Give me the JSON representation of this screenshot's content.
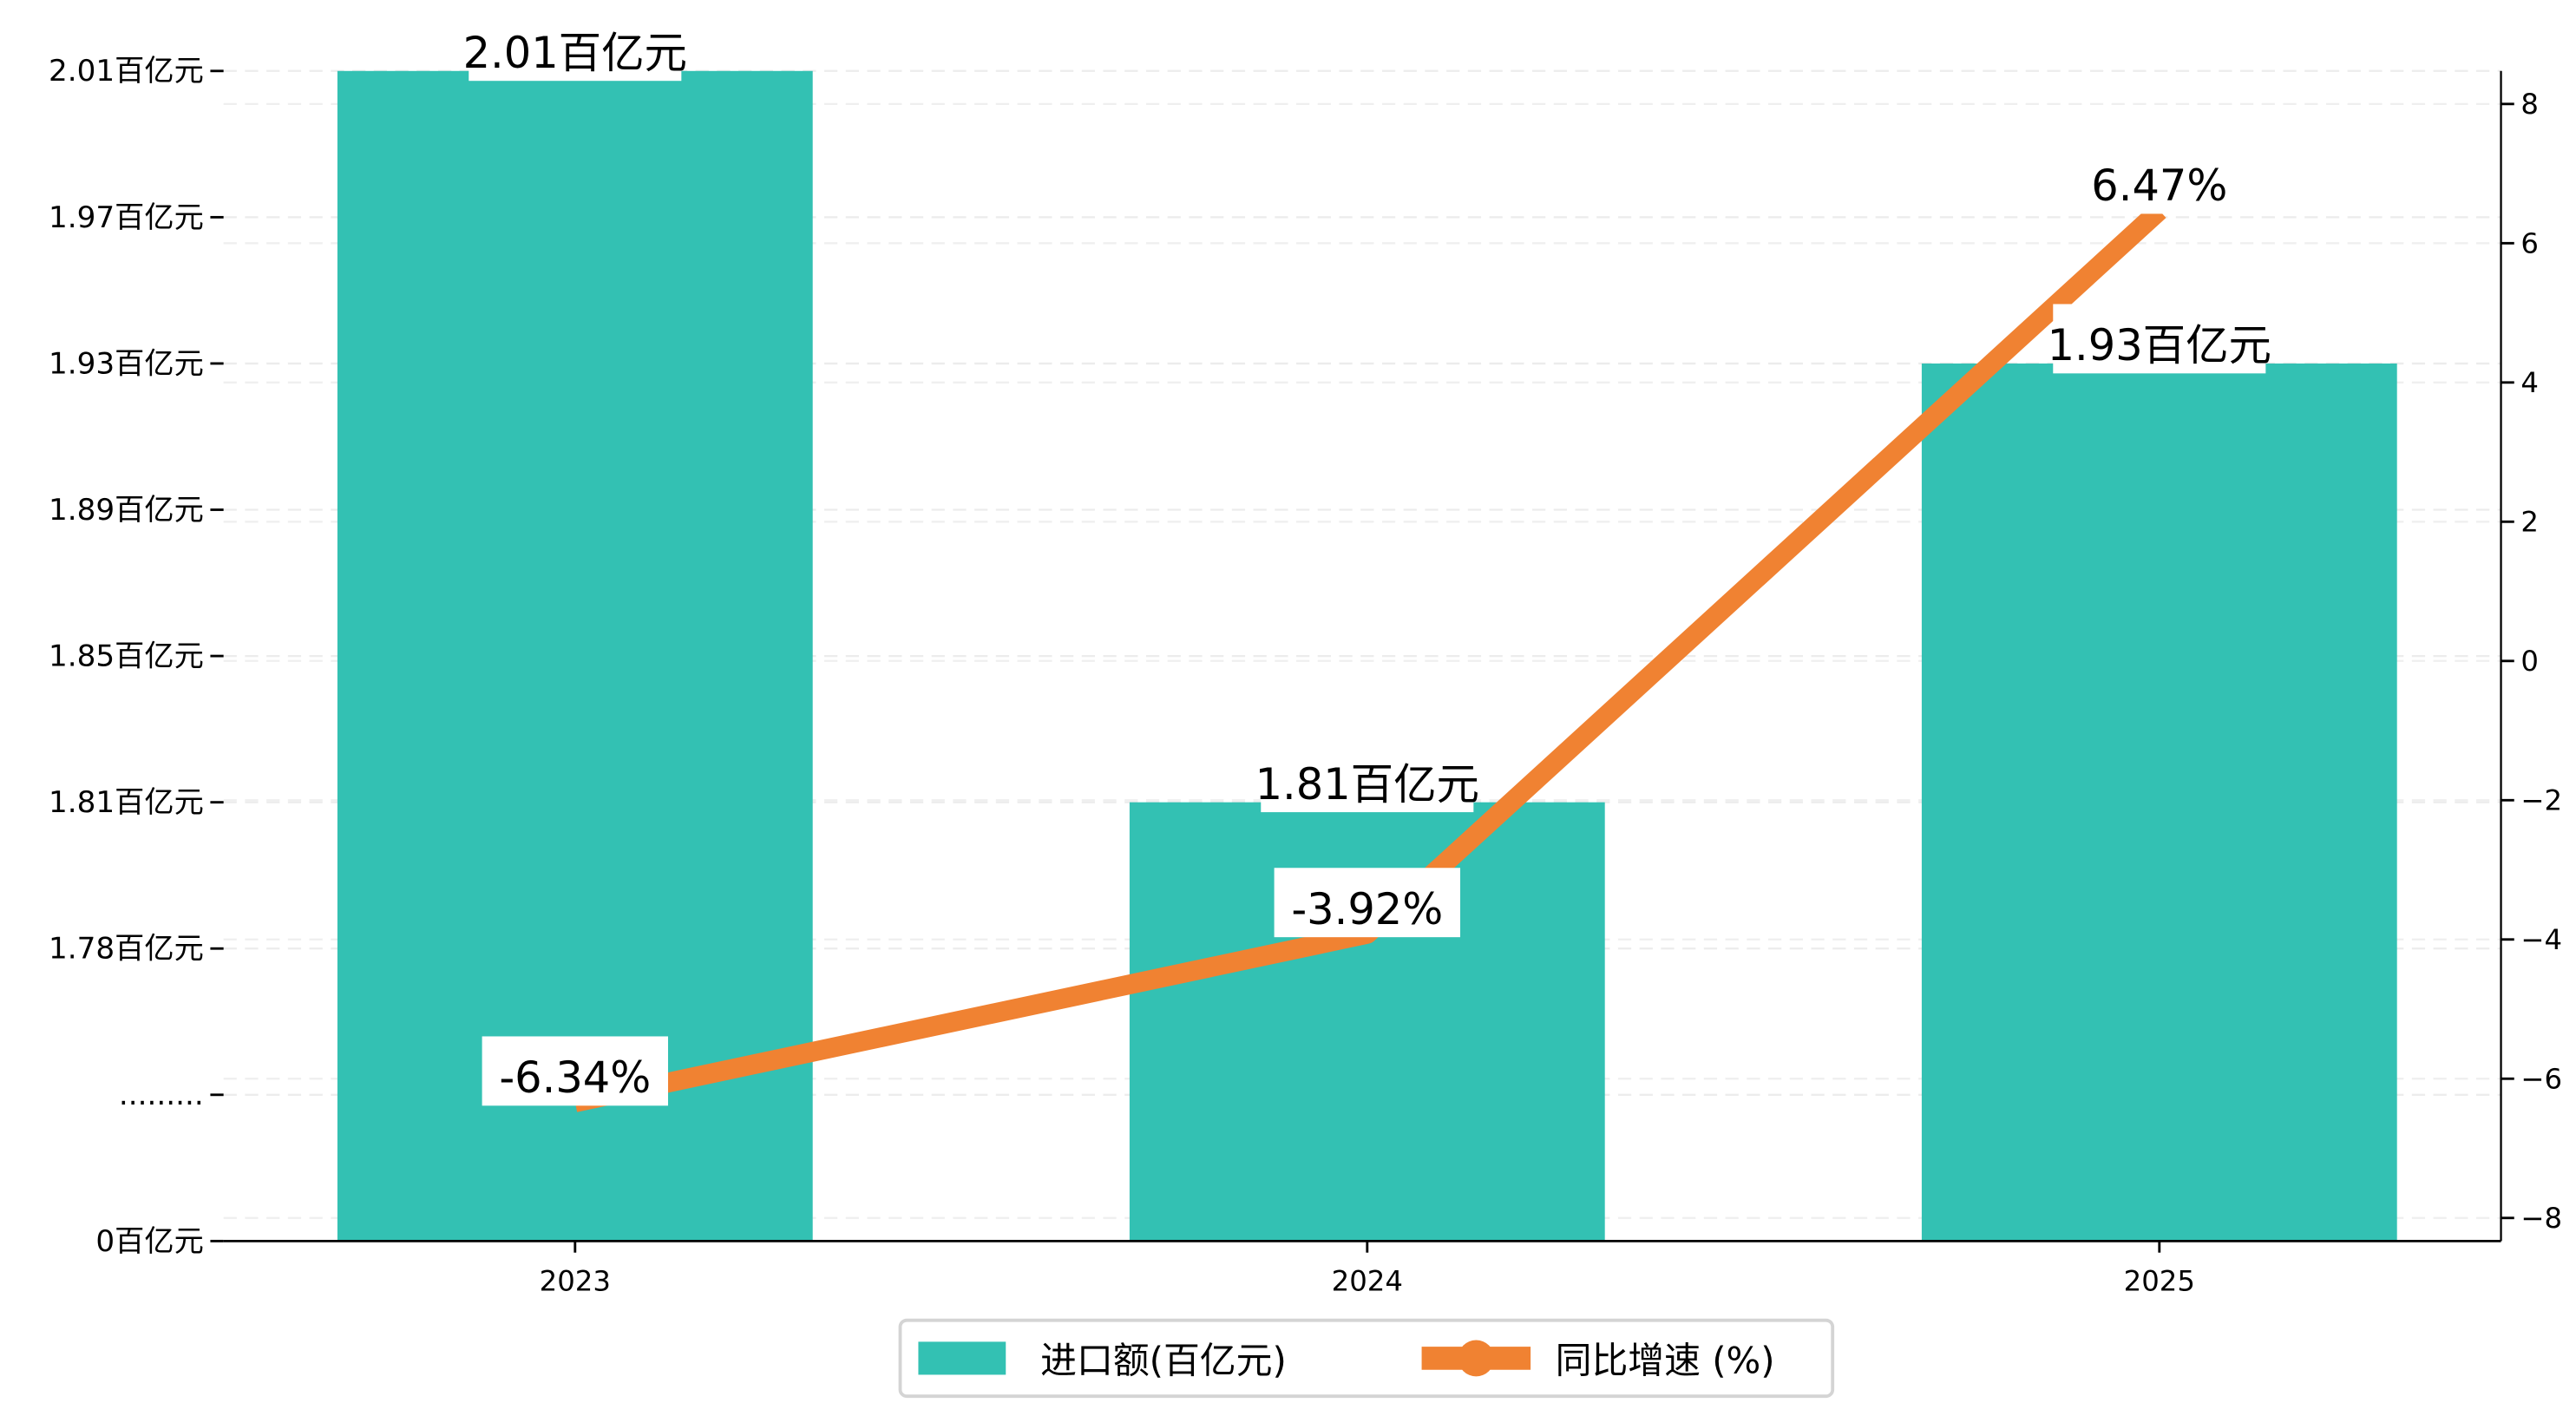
{
  "chart_data": {
    "type": "bar+line",
    "categories": [
      "2023",
      "2024",
      "2025"
    ],
    "series": [
      {
        "name": "进口额(百亿元)",
        "type": "bar",
        "axis": "left",
        "values": [
          2.01,
          1.81,
          1.93
        ],
        "labels": [
          "2.01百亿元",
          "1.81百亿元",
          "1.93百亿元"
        ],
        "color": "#20bcaa"
      },
      {
        "name": "同比增速 (%)",
        "type": "line",
        "axis": "right",
        "values": [
          -6.34,
          -3.92,
          6.47
        ],
        "labels": [
          "-6.34%",
          "-3.92%",
          "6.47%"
        ],
        "color": "#f08232"
      }
    ],
    "left_axis": {
      "note": "broken axis",
      "ticks": [
        {
          "label": "0百亿元"
        },
        {
          "label": "........."
        },
        {
          "label": "1.78百亿元",
          "value": 1.78
        },
        {
          "label": "1.81百亿元",
          "value": 1.81
        },
        {
          "label": "1.85百亿元",
          "value": 1.85
        },
        {
          "label": "1.89百亿元",
          "value": 1.89
        },
        {
          "label": "1.93百亿元",
          "value": 1.93
        },
        {
          "label": "1.97百亿元",
          "value": 1.97
        },
        {
          "label": "2.01百亿元",
          "value": 2.01
        }
      ]
    },
    "right_axis": {
      "ylim": [
        -8.4,
        8.4
      ],
      "ticks": [
        "-8",
        "-6",
        "-4",
        "-2",
        "0",
        "2",
        "4",
        "6",
        "8"
      ]
    },
    "grid": "horizontal dashed",
    "legend_position": "bottom-center"
  }
}
